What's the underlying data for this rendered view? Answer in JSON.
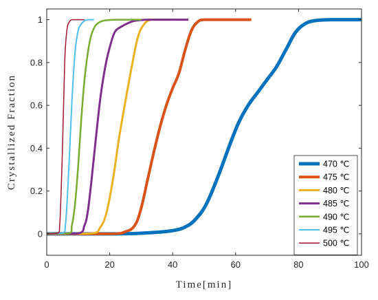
{
  "chart_data": {
    "type": "line",
    "title": "",
    "xlabel": "Time[min]",
    "ylabel": "Crystallized Fraction",
    "xlim": [
      0,
      100
    ],
    "ylim": [
      -0.1,
      1.05
    ],
    "xticks": [
      "0",
      "20",
      "40",
      "60",
      "80",
      "100"
    ],
    "yticks": [
      "0",
      "0.2",
      "0.4",
      "0.6",
      "0.8",
      "1"
    ],
    "grid": false,
    "legend_position": "bottom-right",
    "series": [
      {
        "name": "470 ℃",
        "color": "#0072BD",
        "width": 5,
        "x": [
          0,
          20,
          30,
          40,
          45,
          48,
          50,
          52,
          55,
          58,
          61,
          64,
          67,
          70,
          73,
          76,
          79,
          82,
          85,
          90,
          100
        ],
        "y": [
          0,
          0,
          0.003,
          0.015,
          0.04,
          0.08,
          0.12,
          0.18,
          0.29,
          0.41,
          0.52,
          0.6,
          0.66,
          0.72,
          0.78,
          0.86,
          0.94,
          0.98,
          0.995,
          1.0,
          1.0
        ]
      },
      {
        "name": "475 ℃",
        "color": "#D95319",
        "width": 4,
        "x": [
          0,
          20,
          25,
          28,
          30,
          32,
          34,
          36,
          38,
          40,
          42,
          44,
          46,
          48,
          50,
          55,
          65
        ],
        "y": [
          0,
          0,
          0.01,
          0.04,
          0.12,
          0.25,
          0.38,
          0.5,
          0.6,
          0.68,
          0.75,
          0.86,
          0.95,
          0.99,
          1.0,
          1.0,
          1.0
        ]
      },
      {
        "name": "480 ℃",
        "color": "#EDB120",
        "width": 3,
        "x": [
          0,
          14,
          17,
          19,
          21,
          23,
          25,
          27,
          29,
          31,
          33,
          35,
          40
        ],
        "y": [
          0,
          0.002,
          0.03,
          0.1,
          0.25,
          0.45,
          0.62,
          0.78,
          0.92,
          0.98,
          1.0,
          1.0,
          1.0
        ]
      },
      {
        "name": "485 ℃",
        "color": "#7E2F8E",
        "width": 3,
        "x": [
          0,
          10,
          12,
          13,
          14,
          15,
          16,
          17,
          18,
          19,
          20,
          21,
          22,
          24,
          26,
          28,
          32,
          40,
          45
        ],
        "y": [
          0,
          0.002,
          0.04,
          0.1,
          0.22,
          0.36,
          0.5,
          0.63,
          0.73,
          0.81,
          0.87,
          0.92,
          0.95,
          0.97,
          0.985,
          0.995,
          1.0,
          1.0,
          1.0
        ]
      },
      {
        "name": "490 ℃",
        "color": "#77AC30",
        "width": 2.5,
        "x": [
          0,
          7,
          8,
          9,
          10,
          11,
          12,
          13,
          14,
          15,
          16,
          18,
          22,
          30
        ],
        "y": [
          0,
          0.002,
          0.04,
          0.14,
          0.32,
          0.54,
          0.72,
          0.84,
          0.92,
          0.96,
          0.98,
          0.995,
          1.0,
          1.0
        ]
      },
      {
        "name": "495 ℃",
        "color": "#4DBEEE",
        "width": 2,
        "x": [
          0,
          5,
          6,
          7,
          8,
          9,
          10,
          11,
          12,
          13,
          15
        ],
        "y": [
          0,
          0.003,
          0.05,
          0.3,
          0.62,
          0.85,
          0.95,
          0.98,
          0.995,
          1.0,
          1.0
        ]
      },
      {
        "name": "500 ℃",
        "color": "#A2142F",
        "width": 1.5,
        "x": [
          0,
          3.5,
          4.2,
          5,
          5.7,
          6.4,
          7.2,
          8,
          9,
          10,
          12
        ],
        "y": [
          0,
          0.003,
          0.06,
          0.4,
          0.8,
          0.95,
          0.99,
          1.0,
          1.0,
          1.0,
          1.0
        ]
      }
    ]
  }
}
